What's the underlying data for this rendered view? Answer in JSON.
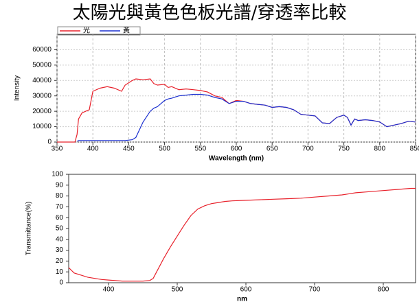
{
  "chart_data": [
    {
      "type": "line",
      "title": "太陽光與黃色色板光譜/穿透率比較",
      "x_label": "Wavelength (nm)",
      "y_label": "Intensity",
      "x": [
        350,
        370,
        375,
        378,
        380,
        385,
        395,
        400,
        410,
        420,
        430,
        440,
        445,
        455,
        460,
        470,
        480,
        485,
        490,
        500,
        505,
        510,
        520,
        530,
        540,
        550,
        560,
        570,
        580,
        585,
        590,
        600,
        610,
        620,
        630,
        640,
        650,
        660,
        670,
        680,
        690,
        700,
        710,
        720,
        730,
        740,
        750,
        755,
        760,
        765,
        770,
        780,
        790,
        800,
        810,
        820,
        830,
        840,
        850
      ],
      "series": [
        {
          "name": "光",
          "color": "#e8202a",
          "values": [
            0,
            0,
            0,
            5000,
            15000,
            19000,
            21000,
            33000,
            35000,
            36000,
            35000,
            33000,
            37000,
            40000,
            41000,
            40500,
            41000,
            38000,
            37000,
            37500,
            35500,
            36000,
            34000,
            34500,
            34000,
            33500,
            32500,
            30000,
            29000,
            27000,
            25000,
            27000,
            26500,
            25000,
            24500,
            24000,
            22500,
            23000,
            22500,
            21000,
            18000,
            17500,
            17000,
            12500,
            12000,
            16000,
            17500,
            16000,
            11000,
            15000,
            14000,
            14500,
            14000,
            13000,
            10000,
            11000,
            12000,
            13500,
            13000
          ]
        },
        {
          "name": "黃",
          "color": "#1a2fd0",
          "values": [
            null,
            null,
            null,
            500,
            1000,
            1000,
            1000,
            1000,
            1000,
            1000,
            1000,
            1000,
            1000,
            1500,
            3000,
            13000,
            20000,
            22000,
            23000,
            27000,
            28000,
            28500,
            30000,
            30500,
            31000,
            31000,
            30500,
            29000,
            28000,
            26500,
            25000,
            26500,
            26500,
            25000,
            24500,
            24000,
            22500,
            23000,
            22500,
            21000,
            18000,
            17500,
            17000,
            12500,
            12000,
            16000,
            17500,
            16000,
            11000,
            15000,
            14000,
            14500,
            14000,
            13000,
            10000,
            11000,
            12000,
            13500,
            13000
          ]
        }
      ],
      "xlim": [
        350,
        850
      ],
      "xticks": [
        350,
        400,
        450,
        500,
        550,
        600,
        650,
        700,
        750,
        800,
        850
      ],
      "ylim": [
        0,
        70000
      ],
      "yticks": [
        0,
        10000,
        20000,
        30000,
        40000,
        50000,
        60000
      ],
      "grid": true
    },
    {
      "type": "line",
      "x_label": "nm",
      "y_label": "Transmittance(%)",
      "x": [
        342,
        345,
        350,
        360,
        370,
        380,
        390,
        400,
        410,
        420,
        430,
        440,
        450,
        460,
        465,
        470,
        480,
        490,
        500,
        510,
        520,
        530,
        540,
        550,
        560,
        570,
        580,
        600,
        620,
        640,
        660,
        680,
        700,
        720,
        740,
        760,
        780,
        800,
        820,
        840,
        847
      ],
      "series": [
        {
          "color": "#e8202a",
          "values": [
            14,
            12,
            9,
            7,
            5,
            4,
            3,
            2.5,
            2,
            1.5,
            1.5,
            1.5,
            1.5,
            2,
            4,
            10,
            22,
            33,
            43,
            53,
            62,
            68,
            71,
            73,
            74,
            75,
            75.5,
            76,
            76.5,
            77,
            77.5,
            78,
            79,
            80,
            81,
            83,
            84,
            85,
            86,
            87,
            87
          ]
        }
      ],
      "xlim": [
        342,
        847
      ],
      "xticks": [
        400,
        500,
        600,
        700,
        800
      ],
      "ylim": [
        0,
        100
      ],
      "yticks": [
        0,
        10,
        20,
        30,
        40,
        50,
        60,
        70,
        80,
        90,
        100
      ],
      "grid": false
    }
  ]
}
